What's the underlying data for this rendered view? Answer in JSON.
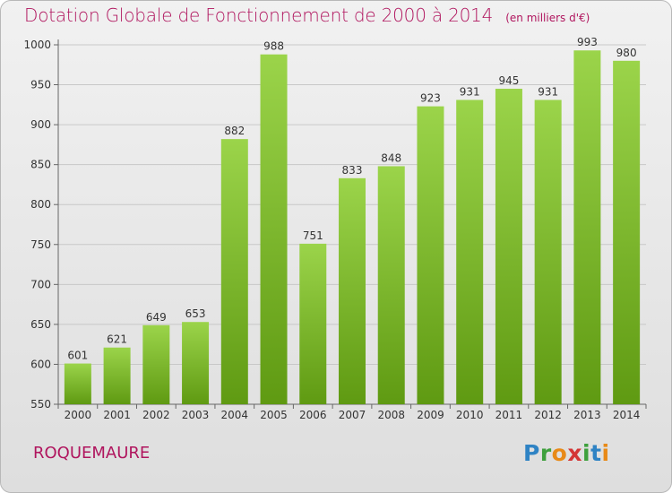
{
  "title": "Dotation Globale de Fonctionnement de 2000 à 2014",
  "subtitle": "(en milliers d'€)",
  "commune": "ROQUEMAURE",
  "logo": {
    "p": "P",
    "r": "r",
    "o": "o",
    "x": "x",
    "i1": "i",
    "t": "t",
    "i2": "i"
  },
  "colors": {
    "bar_light": "#9bd44a",
    "bar_dark": "#5f9a12",
    "title": "#b0155e"
  },
  "chart_data": {
    "type": "bar",
    "categories": [
      "2000",
      "2001",
      "2002",
      "2003",
      "2004",
      "2005",
      "2006",
      "2007",
      "2008",
      "2009",
      "2010",
      "2011",
      "2012",
      "2013",
      "2014"
    ],
    "values": [
      601,
      621,
      649,
      653,
      882,
      988,
      751,
      833,
      848,
      923,
      931,
      945,
      931,
      993,
      980
    ],
    "data_labels": [
      "601",
      "621",
      "649",
      "653",
      "882",
      "988",
      "751",
      "833",
      "848",
      "923",
      "931",
      "945",
      "931",
      "993",
      "980"
    ],
    "ylim": [
      550,
      1000
    ],
    "yticks": [
      550,
      600,
      650,
      700,
      750,
      800,
      850,
      900,
      950,
      1000
    ],
    "grid": true
  }
}
